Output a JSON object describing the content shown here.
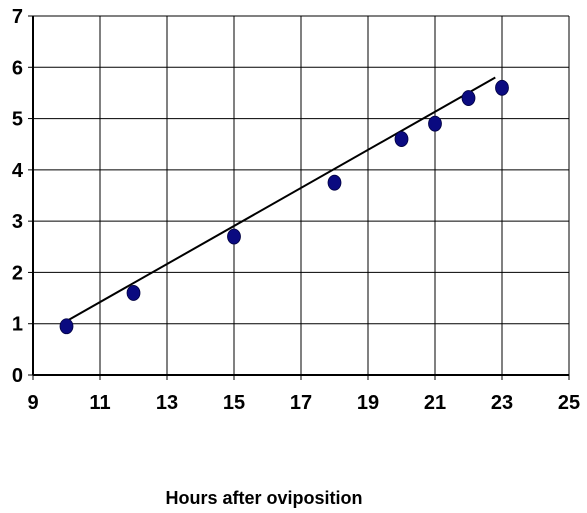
{
  "chart_data": {
    "type": "scatter",
    "title": "",
    "xlabel": "Hours after oviposition",
    "ylabel": "",
    "xlim": [
      9,
      25
    ],
    "ylim": [
      0,
      7
    ],
    "x_ticks": [
      9,
      11,
      13,
      15,
      17,
      19,
      21,
      23,
      25
    ],
    "y_ticks": [
      0,
      1,
      2,
      3,
      4,
      5,
      6,
      7
    ],
    "grid": true,
    "legend": "none",
    "series": [
      {
        "points": [
          {
            "x": 10,
            "y": 0.95
          },
          {
            "x": 12,
            "y": 1.6
          },
          {
            "x": 15,
            "y": 2.7
          },
          {
            "x": 18,
            "y": 3.75
          },
          {
            "x": 20,
            "y": 4.6
          },
          {
            "x": 21,
            "y": 4.9
          },
          {
            "x": 22,
            "y": 5.4
          },
          {
            "x": 23,
            "y": 5.6
          }
        ],
        "color": "#0a0a80"
      }
    ],
    "trendline": {
      "from": {
        "x": 10,
        "y": 1.05
      },
      "to": {
        "x": 22.8,
        "y": 5.8
      },
      "color": "#000000"
    }
  }
}
